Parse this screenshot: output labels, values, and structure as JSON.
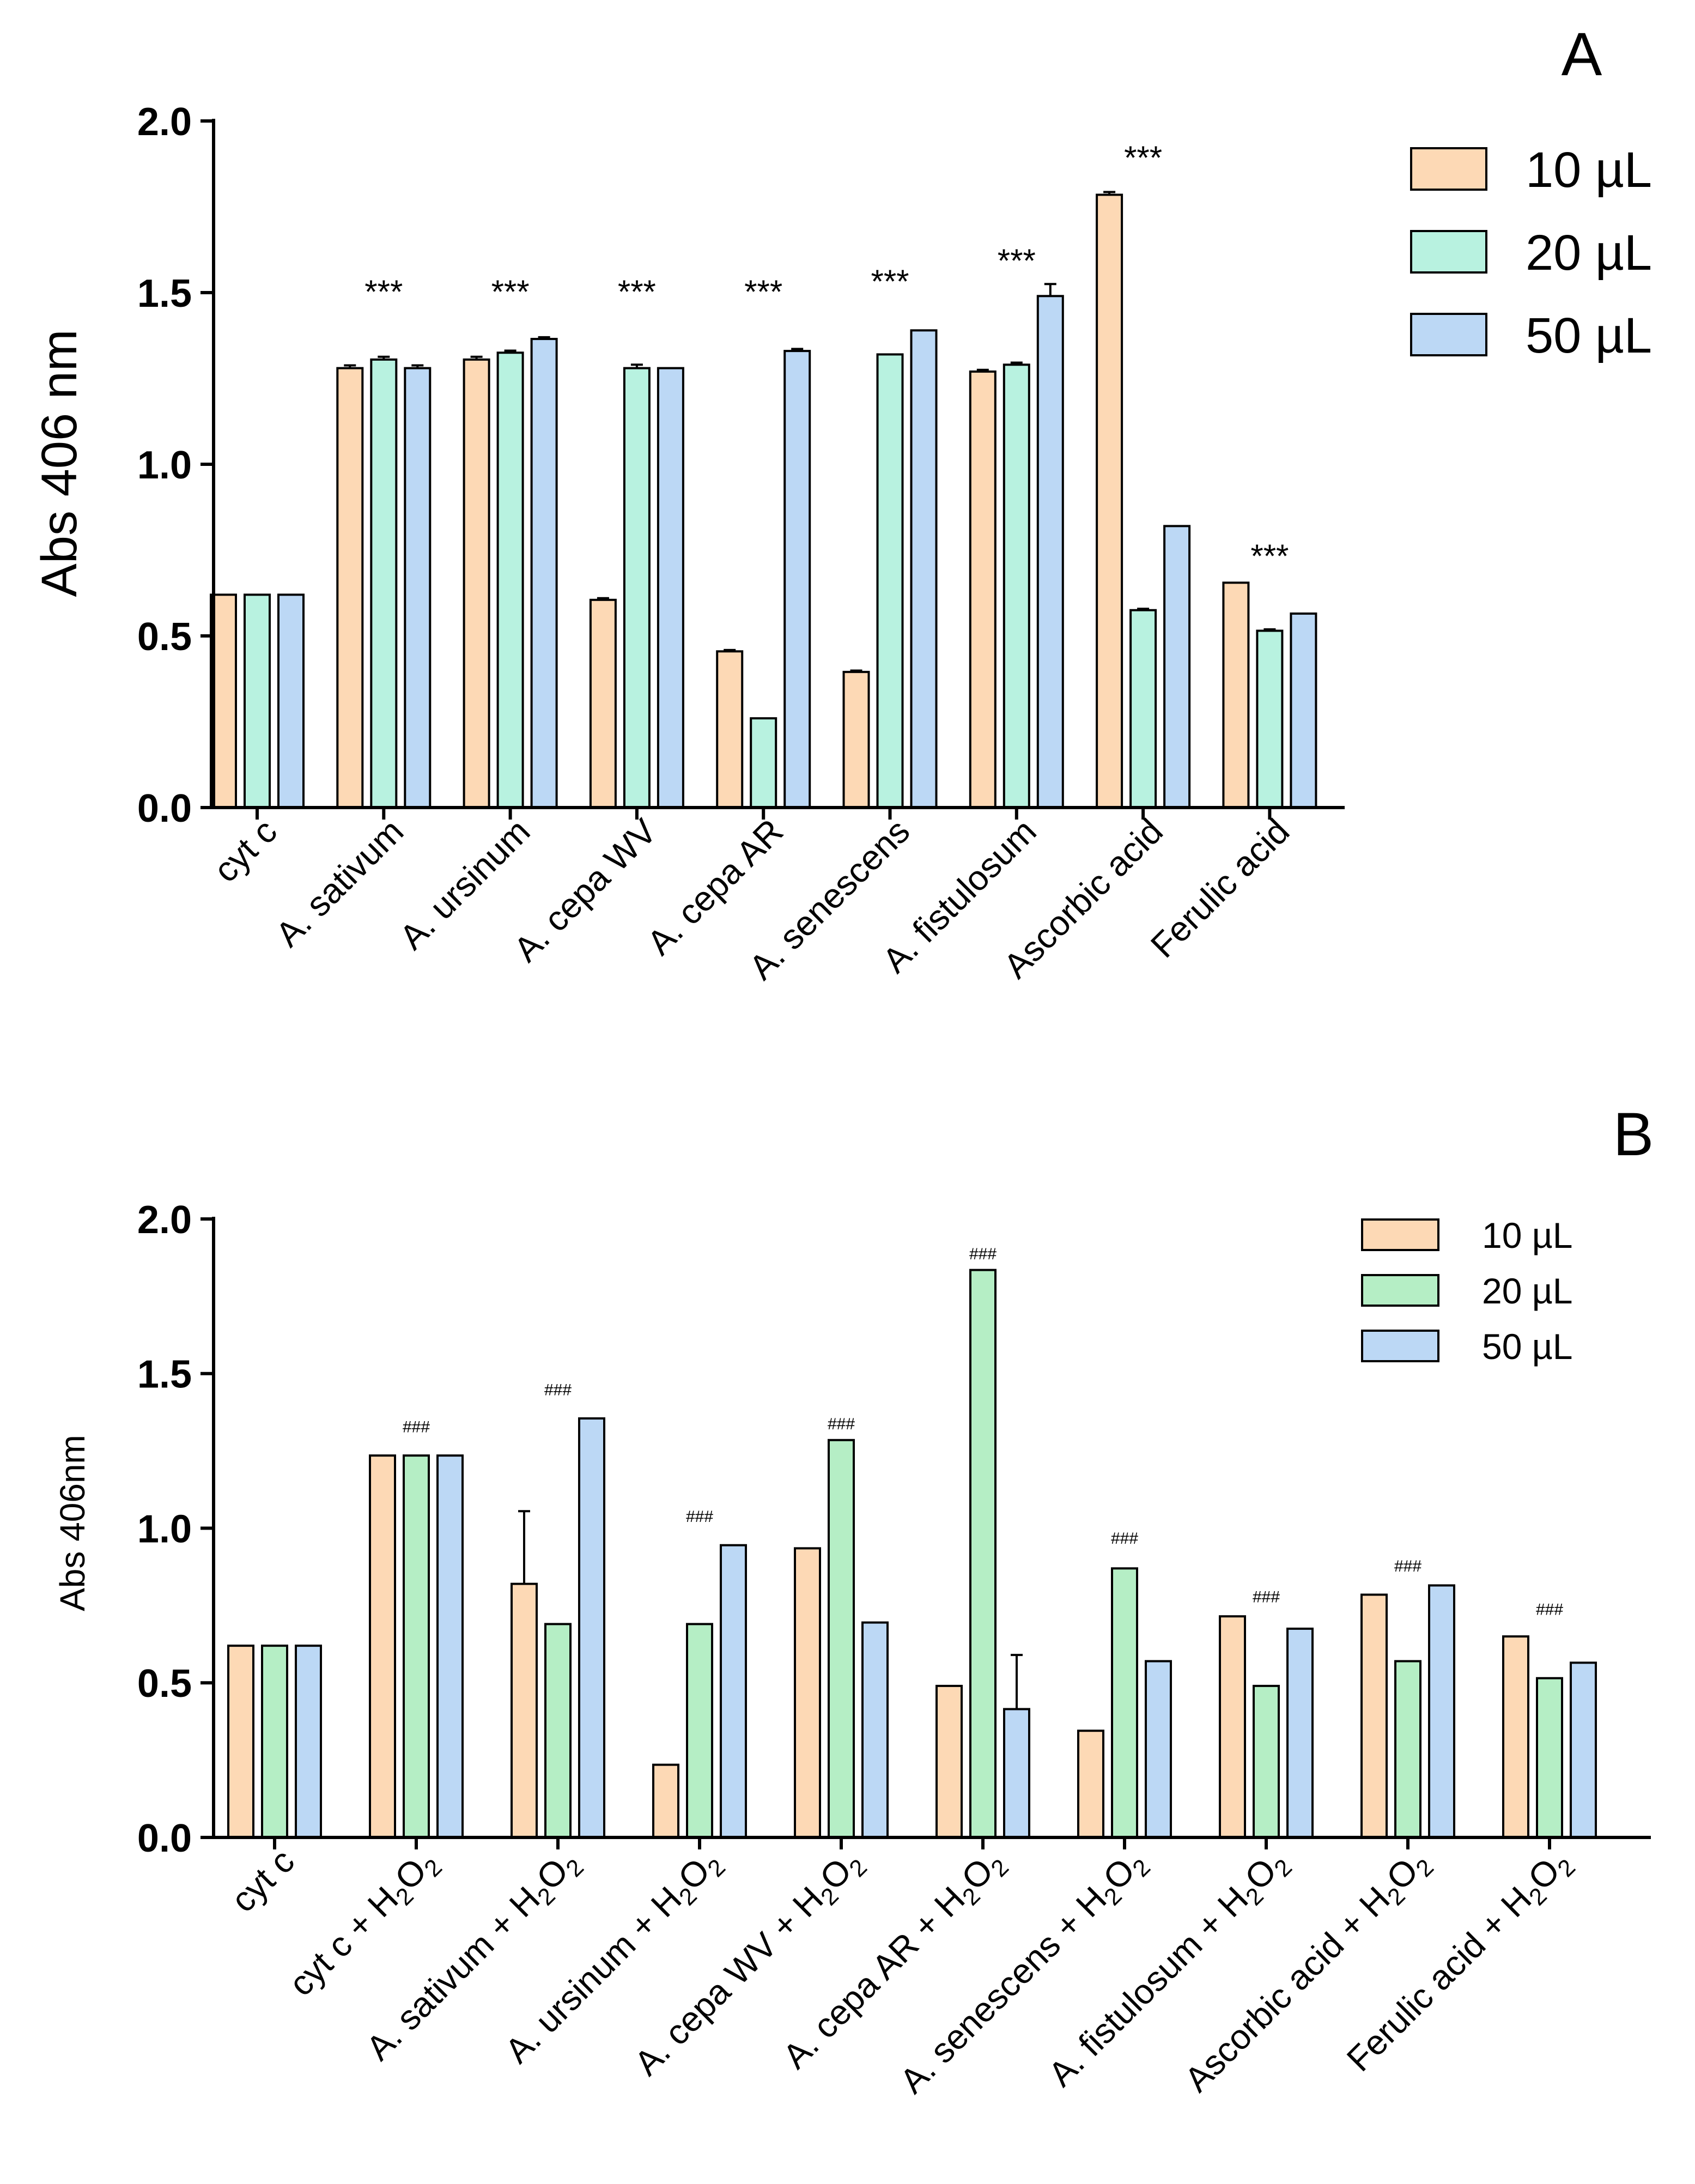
{
  "chart_data": [
    {
      "panel": "A",
      "type": "bar",
      "title": "",
      "xlabel": "",
      "ylabel": "Abs 406 nm",
      "ylim": [
        0,
        2.0
      ],
      "yticks": [
        "0.0",
        "0.5",
        "1.0",
        "1.5",
        "2.0"
      ],
      "grid": false,
      "legend_position": "top-right",
      "categories": [
        "cyt c",
        "A. sativum",
        "A. ursinum",
        "A. cepa WV",
        "A. cepa AR",
        "A. senescens",
        "A. fistulosum",
        "Ascorbic acid",
        "Ferulic acid"
      ],
      "series": [
        {
          "name": "10 µL",
          "color": "#fdd9b5",
          "values": [
            0.62,
            1.28,
            1.305,
            0.605,
            0.455,
            0.395,
            1.27,
            1.785,
            0.655
          ],
          "errors": [
            0,
            0.008,
            0.008,
            0.005,
            0.004,
            0.004,
            0.005,
            0.008,
            0
          ]
        },
        {
          "name": "20 µL",
          "color": "#b8f2e0",
          "values": [
            0.62,
            1.305,
            1.325,
            1.28,
            0.26,
            1.32,
            1.29,
            0.575,
            0.515
          ],
          "errors": [
            0,
            0.008,
            0.006,
            0.01,
            0,
            0,
            0.006,
            0.004,
            0.004
          ]
        },
        {
          "name": "50 µL",
          "color": "#bcd8f5",
          "values": [
            0.62,
            1.28,
            1.365,
            1.28,
            1.33,
            1.39,
            1.49,
            0.82,
            0.565
          ],
          "errors": [
            0,
            0.008,
            0.005,
            0,
            0.006,
            0,
            0.035,
            0,
            0
          ]
        }
      ],
      "annotations": [
        {
          "category": "A. sativum",
          "text": "***"
        },
        {
          "category": "A. ursinum",
          "text": "***"
        },
        {
          "category": "A. cepa WV",
          "text": "***"
        },
        {
          "category": "A. cepa AR",
          "text": "***"
        },
        {
          "category": "A. senescens",
          "text": "***"
        },
        {
          "category": "A. fistulosum",
          "text": "***"
        },
        {
          "category": "Ascorbic acid",
          "text": "***"
        },
        {
          "category": "Ferulic acid",
          "text": "***"
        }
      ],
      "annotation_values": [
        1.47,
        1.47,
        1.47,
        1.47,
        1.5,
        1.56,
        1.86,
        0.7
      ]
    },
    {
      "panel": "B",
      "type": "bar",
      "title": "",
      "xlabel": "",
      "ylabel": "Abs 406nm",
      "ylim": [
        0,
        2.0
      ],
      "yticks": [
        "0.0",
        "0.5",
        "1.0",
        "1.5",
        "2.0"
      ],
      "grid": false,
      "legend_position": "top-right",
      "categories": [
        {
          "base": "cyt c",
          "suffix": false
        },
        {
          "base": "cyt c",
          "suffix": true
        },
        {
          "base": "A. sativum",
          "suffix": true
        },
        {
          "base": "A. ursinum",
          "suffix": true
        },
        {
          "base": "A. cepa WV",
          "suffix": true
        },
        {
          "base": "A. cepa AR",
          "suffix": true
        },
        {
          "base": "A. senescens",
          "suffix": true
        },
        {
          "base": "A. fistulosum",
          "suffix": true
        },
        {
          "base": "Ascorbic acid",
          "suffix": true
        },
        {
          "base": "Ferulic acid",
          "suffix": true
        }
      ],
      "suffix_parts": [
        " + H",
        "2",
        "O",
        "2"
      ],
      "series": [
        {
          "name": "10 µL",
          "color": "#fdd9b5",
          "values": [
            0.62,
            1.235,
            0.82,
            0.235,
            0.935,
            0.49,
            0.345,
            0.715,
            0.785,
            0.65
          ],
          "errors": [
            0,
            0,
            0.235,
            0,
            0,
            0,
            0,
            0,
            0,
            0
          ]
        },
        {
          "name": "20 µL",
          "color": "#b5eec5",
          "values": [
            0.62,
            1.235,
            0.69,
            0.69,
            1.285,
            1.835,
            0.87,
            0.49,
            0.57,
            0.515
          ],
          "errors": [
            0,
            0,
            0,
            0,
            0,
            0,
            0,
            0,
            0,
            0
          ]
        },
        {
          "name": "50 µL",
          "color": "#bcd8f5",
          "values": [
            0.62,
            1.235,
            1.355,
            0.945,
            0.695,
            0.415,
            0.57,
            0.675,
            0.815,
            0.565
          ],
          "errors": [
            0,
            0,
            0,
            0,
            0,
            0.175,
            0,
            0,
            0,
            0
          ]
        }
      ],
      "annotations": [
        {
          "category_index": 1,
          "text": "###"
        },
        {
          "category_index": 2,
          "text": "###"
        },
        {
          "category_index": 3,
          "text": "###"
        },
        {
          "category_index": 4,
          "text": "###"
        },
        {
          "category_index": 5,
          "text": "###"
        },
        {
          "category_index": 6,
          "text": "###"
        },
        {
          "category_index": 7,
          "text": "###"
        },
        {
          "category_index": 8,
          "text": "###"
        },
        {
          "category_index": 9,
          "text": "###"
        }
      ],
      "annotation_values": [
        1.31,
        1.43,
        1.02,
        1.32,
        1.87,
        0.95,
        0.76,
        0.86,
        0.72
      ]
    }
  ]
}
